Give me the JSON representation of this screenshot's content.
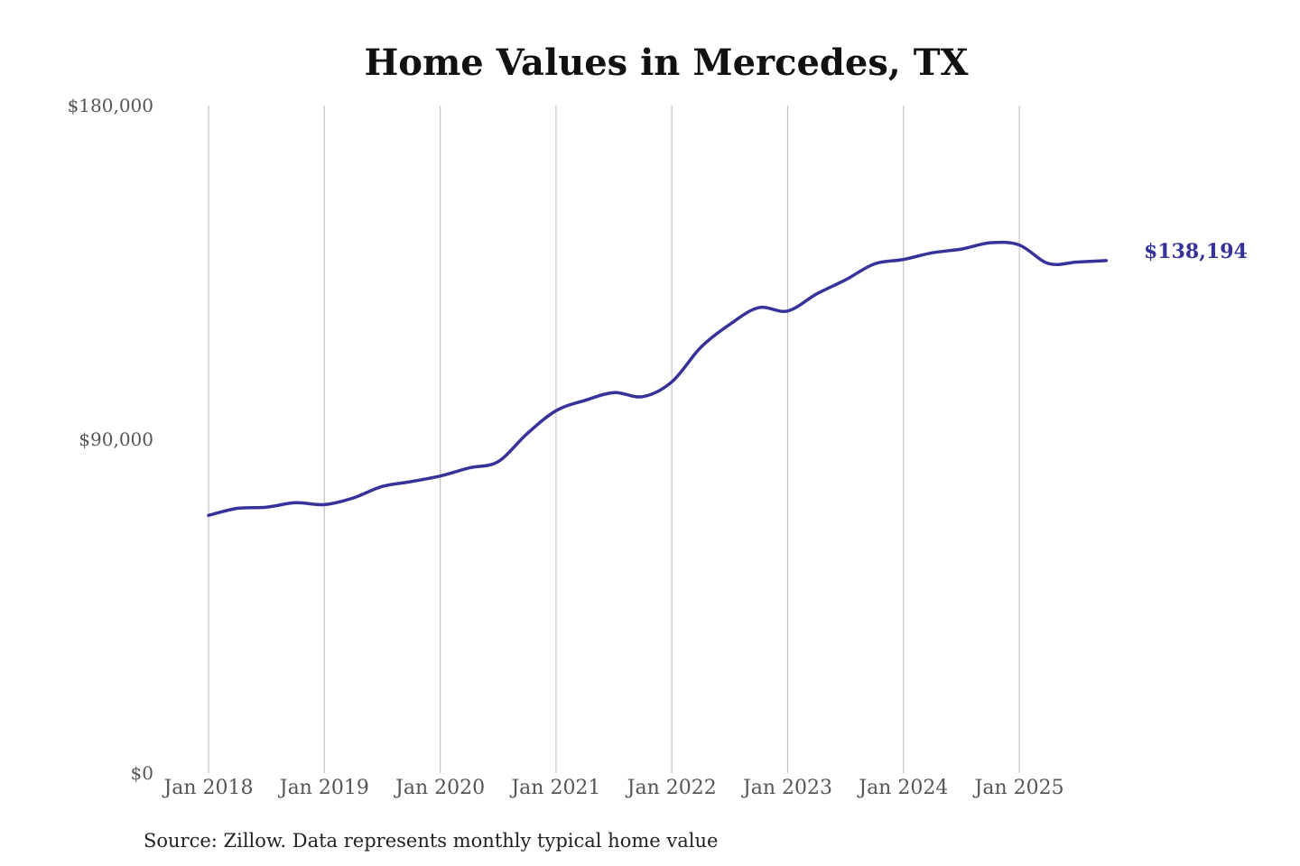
{
  "chart_data": {
    "type": "line",
    "title": "Home Values in Mercedes, TX",
    "source_note": "Source: Zillow. Data represents monthly typical home value",
    "end_label": "$138,194",
    "line_color": "#35339a",
    "grid": "vertical",
    "ylim": [
      0,
      180000
    ],
    "y_ticks": [
      0,
      90000,
      180000
    ],
    "y_tick_labels": [
      "$0",
      "$90,000",
      "$180,000"
    ],
    "x_ticks": [
      "2018-01",
      "2019-01",
      "2020-01",
      "2021-01",
      "2022-01",
      "2023-01",
      "2024-01",
      "2025-01"
    ],
    "x_tick_labels": [
      "Jan 2018",
      "Jan 2019",
      "Jan 2020",
      "Jan 2021",
      "Jan 2022",
      "Jan 2023",
      "Jan 2024",
      "Jan 2025"
    ],
    "series": [
      {
        "values": [
          {
            "x": "2018-01",
            "y": 69500
          },
          {
            "x": "2018-04",
            "y": 71400
          },
          {
            "x": "2018-07",
            "y": 71700
          },
          {
            "x": "2018-10",
            "y": 72900
          },
          {
            "x": "2019-01",
            "y": 72400
          },
          {
            "x": "2019-04",
            "y": 74200
          },
          {
            "x": "2019-07",
            "y": 77300
          },
          {
            "x": "2019-10",
            "y": 78600
          },
          {
            "x": "2020-01",
            "y": 80100
          },
          {
            "x": "2020-04",
            "y": 82300
          },
          {
            "x": "2020-07",
            "y": 84000
          },
          {
            "x": "2020-10",
            "y": 91500
          },
          {
            "x": "2021-01",
            "y": 97700
          },
          {
            "x": "2021-04",
            "y": 100500
          },
          {
            "x": "2021-07",
            "y": 102600
          },
          {
            "x": "2021-10",
            "y": 101500
          },
          {
            "x": "2022-01",
            "y": 105500
          },
          {
            "x": "2022-04",
            "y": 114800
          },
          {
            "x": "2022-07",
            "y": 121000
          },
          {
            "x": "2022-10",
            "y": 125500
          },
          {
            "x": "2023-01",
            "y": 124600
          },
          {
            "x": "2023-04",
            "y": 129200
          },
          {
            "x": "2023-07",
            "y": 133000
          },
          {
            "x": "2023-10",
            "y": 137300
          },
          {
            "x": "2024-01",
            "y": 138500
          },
          {
            "x": "2024-04",
            "y": 140300
          },
          {
            "x": "2024-07",
            "y": 141300
          },
          {
            "x": "2024-10",
            "y": 143000
          },
          {
            "x": "2025-01",
            "y": 142400
          },
          {
            "x": "2025-04",
            "y": 137400
          },
          {
            "x": "2025-07",
            "y": 137800
          },
          {
            "x": "2025-10",
            "y": 138194
          }
        ]
      }
    ]
  }
}
